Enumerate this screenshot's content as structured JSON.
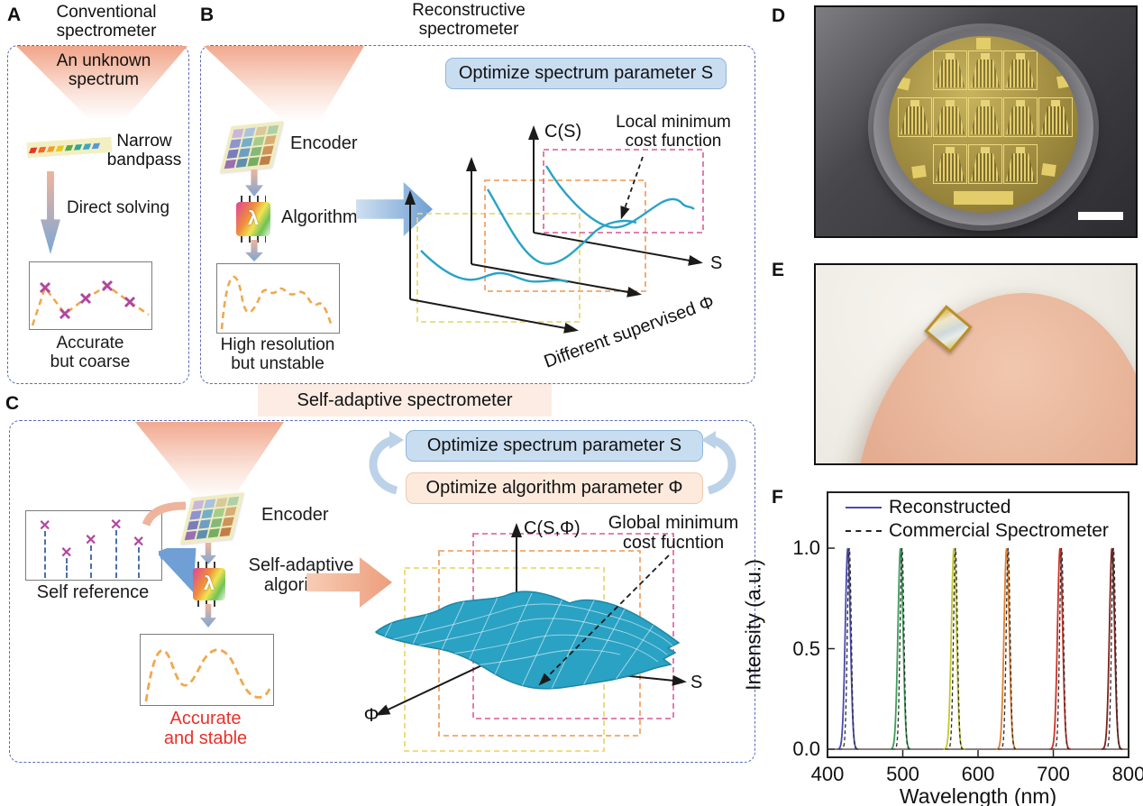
{
  "panels": {
    "a": {
      "label": "A",
      "title_line1": "Conventional",
      "title_line2": "spectrometer",
      "funnel_line1": "An unknown",
      "funnel_line2": "spectrum",
      "bandpass_line1": "Narrow",
      "bandpass_line2": "bandpass",
      "solving_label": "Direct solving",
      "caption_line1": "Accurate",
      "caption_line2": "but coarse"
    },
    "b": {
      "label": "B",
      "title_line1": "Reconstructive",
      "title_line2": "spectrometer",
      "encoder_label": "Encoder",
      "algorithm_label": "Algorithm",
      "caption_line1": "High resolution",
      "caption_line2": "but unstable",
      "optimize_box": "Optimize spectrum parameter S",
      "cost_axis_label": "C(S)",
      "annotation_line1": "Local minimum",
      "annotation_line2": "cost function",
      "s_axis_label": "S",
      "phi_axis_label": "Different supervised Φ"
    },
    "c": {
      "label": "C",
      "banner": "Self-adaptive spectrometer",
      "self_reference_label": "Self reference",
      "encoder_label": "Encoder",
      "algorithm_line1": "Self-adaptive",
      "algorithm_line2": "algorithm",
      "caption_line1": "Accurate",
      "caption_line2": "and stable",
      "optimize_s_box": "Optimize spectrum parameter S",
      "optimize_phi_box": "Optimize algorithm parameter Φ",
      "cost_axis_label": "C(S,Φ)",
      "annotation_line1": "Global minimum",
      "annotation_line2": "cost fucntion",
      "s_axis_label": "S",
      "phi_axis_label": "Φ"
    },
    "d": {
      "label": "D"
    },
    "e": {
      "label": "E"
    },
    "f": {
      "label": "F"
    }
  },
  "colors": {
    "panel_border": "#5b6bb5",
    "salmon": "#f3b29c",
    "optimize_blue_bg": "#c9ddf1",
    "optimize_peach_bg": "#fdeadd",
    "cyan_curve": "#29a3c6",
    "magenta_marker": "#b0479f",
    "orange_spectrum": "#f0a84e",
    "red_caption": "#e8312a",
    "dashed_rect_yellow": "#ead973",
    "dashed_rect_orange": "#f2a468",
    "dashed_rect_pink": "#e06ea6"
  },
  "chart_data": {
    "type": "line",
    "title": "",
    "xlabel": "Wavelength (nm)",
    "ylabel": "Intensity (a.u.)",
    "xlim": [
      400,
      800
    ],
    "ylim": [
      0.0,
      1.0
    ],
    "xticks": [
      "400",
      "500",
      "600",
      "700",
      "800"
    ],
    "yticks": [
      "1.0",
      "0.5",
      "0.0"
    ],
    "grid": false,
    "legend_position": "upper-left-inside",
    "legend": [
      {
        "label": "Reconstructed",
        "line": "solid",
        "color": "#4a4aad"
      },
      {
        "label": "Commercial Spectrometer",
        "line": "dashed",
        "color": "#222222"
      }
    ],
    "series": [
      {
        "name": "Reconstructed",
        "style": "solid",
        "peaks": [
          {
            "center_nm": 427,
            "height": 1.0,
            "fwhm_nm": 8,
            "color": "#4a4aad"
          },
          {
            "center_nm": 497,
            "height": 1.0,
            "fwhm_nm": 8,
            "color": "#3f9e5c"
          },
          {
            "center_nm": 568,
            "height": 1.0,
            "fwhm_nm": 8,
            "color": "#c3c832"
          },
          {
            "center_nm": 638,
            "height": 1.0,
            "fwhm_nm": 8,
            "color": "#e2812f"
          },
          {
            "center_nm": 709,
            "height": 1.0,
            "fwhm_nm": 8,
            "color": "#cc3328"
          },
          {
            "center_nm": 778,
            "height": 1.0,
            "fwhm_nm": 8,
            "color": "#7e221d"
          }
        ]
      },
      {
        "name": "Commercial Spectrometer",
        "style": "dashed",
        "color": "#2a2a2a",
        "peaks": [
          {
            "center_nm": 429,
            "height": 1.0,
            "fwhm_nm": 6
          },
          {
            "center_nm": 499,
            "height": 1.0,
            "fwhm_nm": 6
          },
          {
            "center_nm": 570,
            "height": 1.0,
            "fwhm_nm": 6
          },
          {
            "center_nm": 640,
            "height": 1.0,
            "fwhm_nm": 6
          },
          {
            "center_nm": 711,
            "height": 1.0,
            "fwhm_nm": 6
          },
          {
            "center_nm": 780,
            "height": 1.0,
            "fwhm_nm": 6
          }
        ]
      }
    ]
  }
}
